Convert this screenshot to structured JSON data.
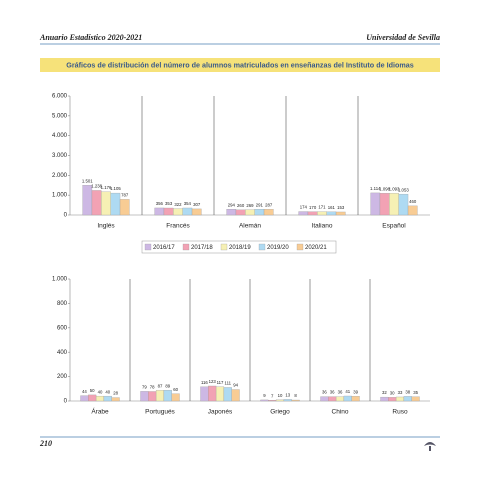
{
  "header": {
    "left": "Anuario Estadístico 2020-2021",
    "right": "Universidad de Sevilla"
  },
  "banner": "Gráficos de distribución del número de alumnos matriculados en enseñanzas del Instituto de Idiomas",
  "footer": {
    "page": "210"
  },
  "chart_data": [
    {
      "type": "bar",
      "categories": [
        "Inglés",
        "Francés",
        "Alemán",
        "Italiano",
        "Español"
      ],
      "series": [
        {
          "name": "2016/17",
          "color": "#cdb8e4",
          "values": [
            1501,
            356,
            294,
            174,
            1114
          ],
          "value_labels": [
            "1.501",
            "356",
            "294",
            "174",
            "1.114"
          ]
        },
        {
          "name": "2017/18",
          "color": "#f2a2b4",
          "values": [
            1238,
            353,
            260,
            170,
            1098
          ],
          "value_labels": [
            "1.238",
            "353",
            "260",
            "170",
            "1.098"
          ]
        },
        {
          "name": "2018/19",
          "color": "#f6f0b4",
          "values": [
            1176,
            322,
            269,
            171,
            1093
          ],
          "value_labels": [
            "1.176",
            "322",
            "269",
            "171",
            "1.093"
          ]
        },
        {
          "name": "2019/20",
          "color": "#aedaf2",
          "values": [
            1105,
            354,
            291,
            161,
            1053
          ],
          "value_labels": [
            "1.105",
            "354",
            "291",
            "161",
            "1.053"
          ]
        },
        {
          "name": "2020/21",
          "color": "#f8cc94",
          "values": [
            787,
            307,
            287,
            153,
            460
          ],
          "value_labels": [
            "787",
            "307",
            "287",
            "153",
            "460"
          ]
        }
      ],
      "ylim": [
        0,
        6000
      ],
      "yticks": [
        0,
        {
          "value": 1000,
          "label": "1.000"
        },
        {
          "value": 2000,
          "label": "2.000"
        },
        {
          "value": 3000,
          "label": "3.000"
        },
        {
          "value": 4000,
          "label": "4.000"
        },
        {
          "value": 5000,
          "label": "5.000"
        },
        {
          "value": 6000,
          "label": "6.000"
        }
      ]
    },
    {
      "type": "bar",
      "categories": [
        "Árabe",
        "Portugués",
        "Japonés",
        "Griego",
        "Chino",
        "Ruso"
      ],
      "series": [
        {
          "values": [
            44,
            79,
            116,
            9,
            36,
            32
          ]
        },
        {
          "values": [
            50,
            78,
            123,
            7,
            36,
            30
          ]
        },
        {
          "values": [
            40,
            87,
            117,
            10,
            36,
            33
          ]
        },
        {
          "values": [
            40,
            89,
            111,
            13,
            41,
            38
          ]
        },
        {
          "values": [
            28,
            60,
            94,
            8,
            39,
            35
          ]
        }
      ],
      "ylim": [
        0,
        1000
      ],
      "yticks": [
        0,
        200,
        400,
        600,
        800,
        {
          "value": 1000,
          "label": "1.000"
        }
      ]
    }
  ]
}
